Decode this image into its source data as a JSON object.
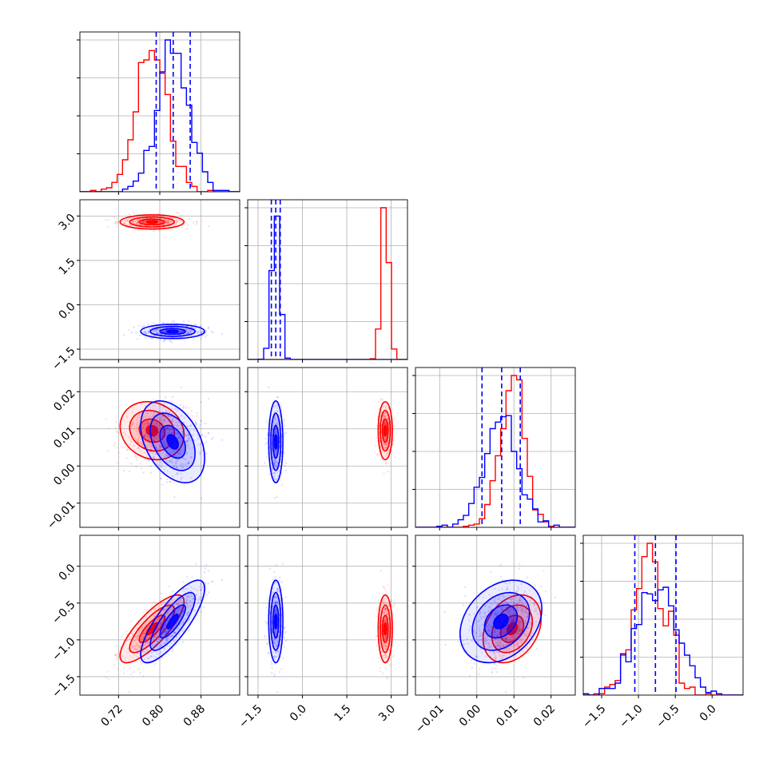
{
  "colors": {
    "red": "#ff0000",
    "blue": "#0000ff",
    "grid": "#b0b0b0",
    "axis": "#000000"
  },
  "chart_data": {
    "type": "corner",
    "grid": true,
    "dimensions": [
      {
        "range": [
          0.645,
          0.955
        ],
        "ticks": [
          0.72,
          0.8,
          0.88
        ],
        "tick_labels": [
          "0.72",
          "0.80",
          "0.88"
        ]
      },
      {
        "range": [
          -1.85,
          3.55
        ],
        "ticks": [
          -1.5,
          0.0,
          1.5,
          3.0
        ],
        "tick_labels": [
          "−1.5",
          "0.0",
          "1.5",
          "3.0"
        ]
      },
      {
        "range": [
          -0.0165,
          0.0265
        ],
        "ticks": [
          -0.01,
          0.0,
          0.01,
          0.02
        ],
        "tick_labels": [
          "−0.01",
          "0.00",
          "0.01",
          "0.02"
        ]
      },
      {
        "range": [
          -1.75,
          0.42
        ],
        "ticks": [
          -1.5,
          -1.0,
          -0.5,
          0.0
        ],
        "tick_labels": [
          "−1.5",
          "−1.0",
          "−0.5",
          "0.0"
        ]
      }
    ],
    "series": [
      {
        "color": "red",
        "mean": [
          0.785,
          2.8,
          0.0095,
          -0.85
        ],
        "sd": [
          0.031,
          0.12,
          0.0039,
          0.23
        ],
        "corr": {
          "0-3": 0.8,
          "2-3": 0.3,
          "0-2": -0.15
        }
      },
      {
        "color": "blue",
        "mean": [
          0.825,
          -0.9,
          0.0065,
          -0.75
        ],
        "sd": [
          0.031,
          0.12,
          0.0055,
          0.28
        ],
        "corr": {
          "0-3": 0.8,
          "2-3": 0.3,
          "0-2": -0.4
        }
      }
    ],
    "quantile_lines": [
      [
        0.793,
        0.826,
        0.859
      ],
      [
        -1.05,
        -0.9,
        -0.75
      ],
      [
        0.0014,
        0.0067,
        0.0117
      ],
      [
        -1.05,
        -0.77,
        -0.49
      ]
    ]
  }
}
